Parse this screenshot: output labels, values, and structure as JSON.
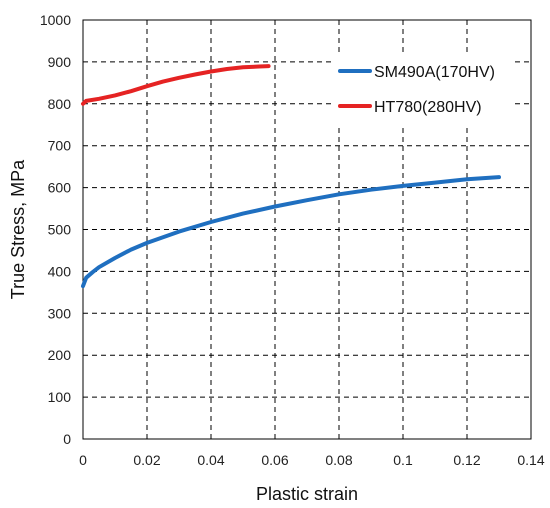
{
  "chart_data": {
    "type": "line",
    "xlabel": "Plastic strain",
    "ylabel": "True Stress, MPa",
    "xlim": [
      0,
      0.14
    ],
    "ylim": [
      0,
      1000
    ],
    "x_ticks": [
      0,
      0.02,
      0.04,
      0.06,
      0.08,
      0.1,
      0.12,
      0.14
    ],
    "x_tick_labels": [
      "0",
      "0.02",
      "0.04",
      "0.06",
      "0.08",
      "0.1",
      "0.12",
      "0.14"
    ],
    "y_ticks": [
      0,
      100,
      200,
      300,
      400,
      500,
      600,
      700,
      800,
      900,
      1000
    ],
    "y_tick_labels": [
      "0",
      "100",
      "200",
      "300",
      "400",
      "500",
      "600",
      "700",
      "800",
      "900",
      "1000"
    ],
    "grid": "dashed",
    "legend_position": "top-right",
    "series": [
      {
        "name": "SM490A(170HV)",
        "color": "#1f6fc0",
        "x": [
          0,
          0.001,
          0.003,
          0.005,
          0.01,
          0.015,
          0.02,
          0.03,
          0.04,
          0.05,
          0.06,
          0.07,
          0.08,
          0.09,
          0.1,
          0.11,
          0.12,
          0.13
        ],
        "y": [
          365,
          385,
          398,
          410,
          432,
          452,
          468,
          495,
          518,
          538,
          555,
          570,
          584,
          595,
          604,
          612,
          620,
          625
        ]
      },
      {
        "name": "HT780(280HV)",
        "color": "#e52323",
        "x": [
          0,
          0.001,
          0.005,
          0.01,
          0.015,
          0.02,
          0.025,
          0.03,
          0.035,
          0.04,
          0.045,
          0.05,
          0.055,
          0.058
        ],
        "y": [
          800,
          807,
          812,
          820,
          830,
          842,
          853,
          862,
          870,
          877,
          883,
          887,
          889,
          890
        ]
      }
    ]
  }
}
